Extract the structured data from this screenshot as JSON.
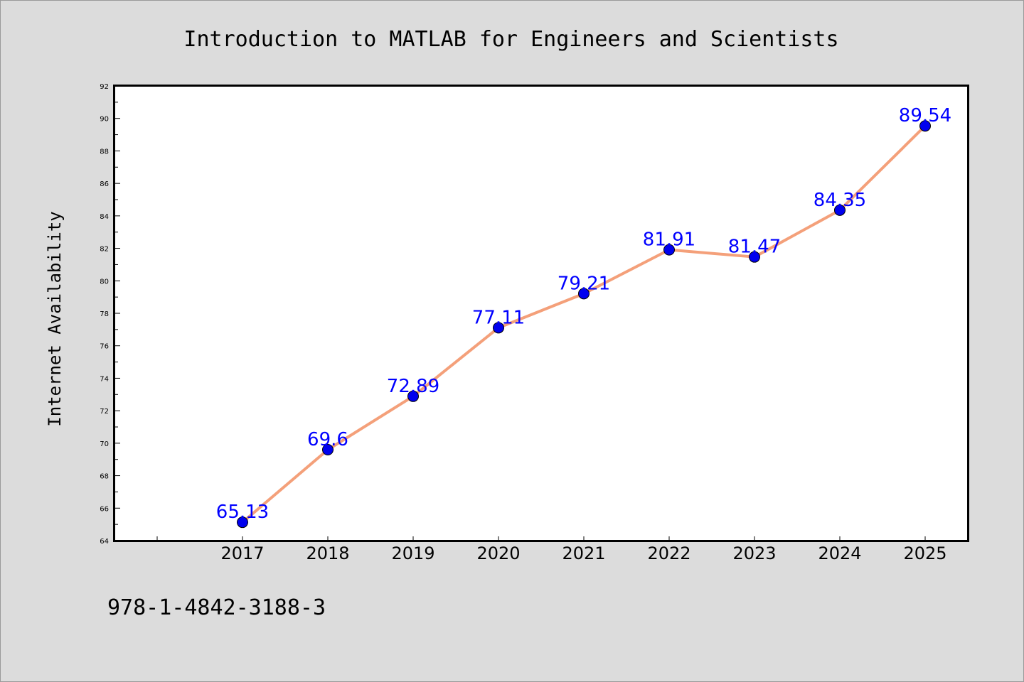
{
  "chart_data": {
    "type": "line",
    "title": "Introduction to MATLAB for Engineers and Scientists",
    "xlabel": "",
    "ylabel": "Internet Availability",
    "x": [
      2017,
      2018,
      2019,
      2020,
      2021,
      2022,
      2023,
      2024,
      2025
    ],
    "x_tick_labels": [
      "2017",
      "2018",
      "2019",
      "2020",
      "2021",
      "2022",
      "2023",
      "2024",
      "2025"
    ],
    "values": [
      65.13,
      69.6,
      72.89,
      77.11,
      79.21,
      81.91,
      81.47,
      84.35,
      89.54
    ],
    "data_labels": [
      "65.13",
      "69.6",
      "72.89",
      "77.11",
      "79.21",
      "81.91",
      "81.47",
      "84.35",
      "89.54"
    ],
    "xlim": [
      2015.5,
      2025.5
    ],
    "ylim": [
      64,
      92
    ],
    "y_ticks": [
      64,
      66,
      68,
      70,
      72,
      74,
      76,
      78,
      80,
      82,
      84,
      86,
      88,
      90,
      92
    ],
    "y_tick_labels": [
      "64",
      "66",
      "68",
      "70",
      "72",
      "74",
      "76",
      "78",
      "80",
      "82",
      "84",
      "86",
      "88",
      "90",
      "92"
    ],
    "grid": false,
    "line_color": "#f4a07a",
    "marker_color": "#0000ee",
    "label_color": "#0000ff"
  },
  "footer": {
    "isbn": "978-1-4842-3188-3"
  }
}
